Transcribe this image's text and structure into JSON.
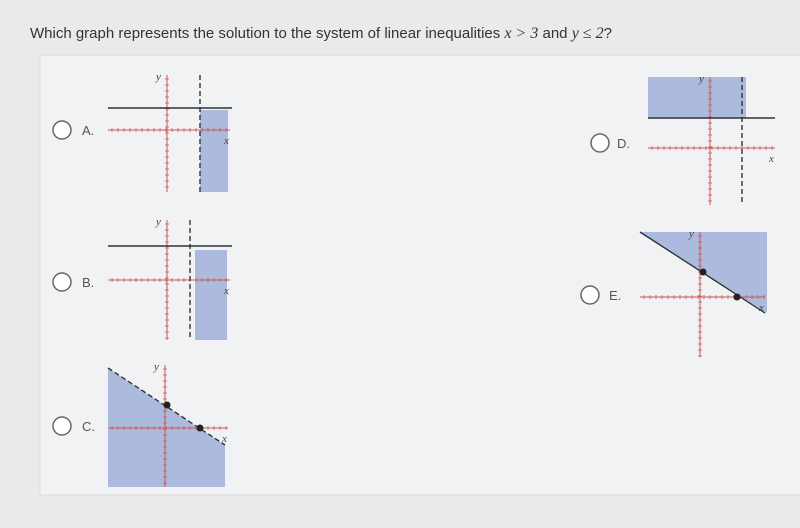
{
  "question": {
    "parts": [
      "Which graph represents the solution to the system of linear inequalities ",
      "x > 3",
      " and ",
      "y ≤ 2",
      "?"
    ]
  },
  "options": [
    {
      "label": "A.",
      "x_label": "x",
      "y_label": "y"
    },
    {
      "label": "B.",
      "x_label": "x",
      "y_label": "y"
    },
    {
      "label": "C.",
      "x_label": "x",
      "y_label": "y"
    },
    {
      "label": "D.",
      "x_label": "x",
      "y_label": "y"
    },
    {
      "label": "E.",
      "x_label": "x",
      "y_label": "y"
    }
  ]
}
